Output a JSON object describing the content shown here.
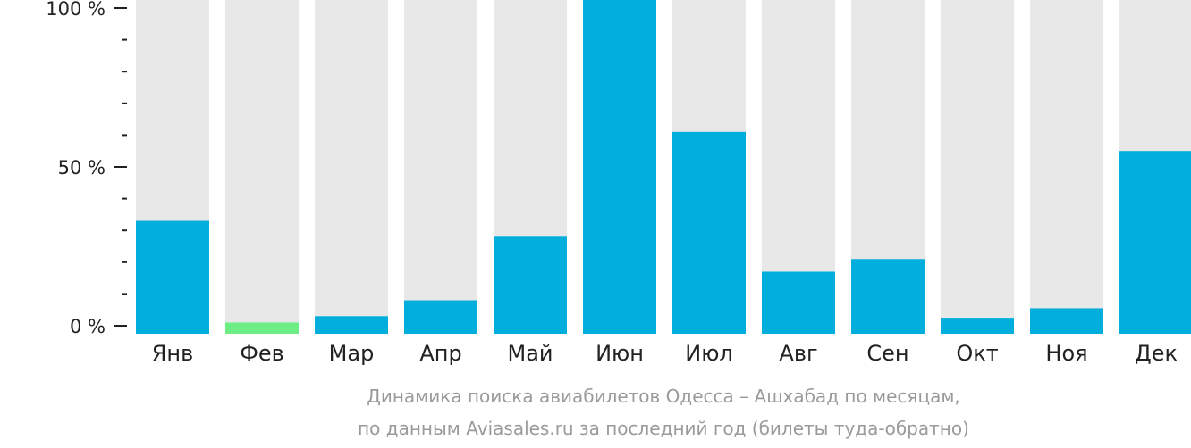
{
  "chart_data": {
    "type": "bar",
    "title": "Динамика поиска авиабилетов Одесса – Ашхабад по месяцам,",
    "subtitle": "по данным Aviasales.ru за последний год (билеты туда-обратно)",
    "xlabel": "",
    "ylabel": "",
    "categories": [
      "Янв",
      "Фев",
      "Мар",
      "Апр",
      "Май",
      "Июн",
      "Июл",
      "Авг",
      "Сен",
      "Окт",
      "Ноя",
      "Дек"
    ],
    "values": [
      33,
      1,
      3,
      8,
      28,
      100,
      61,
      17,
      21,
      2.5,
      5.5,
      55
    ],
    "ylim": [
      0,
      100
    ],
    "yticks": [
      {
        "value": 0,
        "label": "0 %"
      },
      {
        "value": 50,
        "label": "50 %"
      },
      {
        "value": 100,
        "label": "100 %"
      }
    ],
    "minor_tick_step": 10,
    "grid": false,
    "colors": {
      "bar": "#02AFDC",
      "bar_lowest": "#6CEE85",
      "background_bar": "#E8E8E8",
      "axis": "#222222"
    }
  }
}
